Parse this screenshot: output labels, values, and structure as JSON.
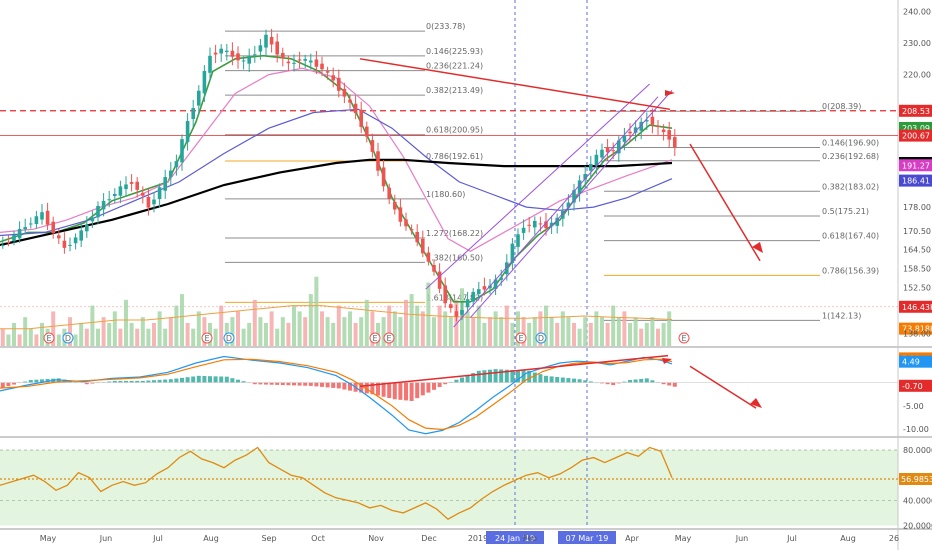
{
  "colors": {
    "bull": "#26a69a",
    "bear": "#ef5350",
    "ema_fast": "#3f9b3f",
    "ma_pink": "#e87cc5",
    "ma_blue": "#5b5bd6",
    "ma_black": "#000000",
    "channel": "#9b4fe0",
    "annot": "#e32b2b",
    "macd": "#2196f3",
    "signal": "#f57c00",
    "rsi": "#e08a12",
    "rsi_band": "#e3f5df",
    "vol_ma": "#f0a040",
    "fib_orange": "#f5a623"
  },
  "chart_data": [
    {
      "type": "line",
      "name": "price",
      "ylim": [
        134,
        243
      ],
      "y_ticks": [
        "240.00",
        "230.00",
        "220.00",
        "208.53",
        "203.09",
        "200.67",
        "191.98",
        "191.27",
        "186.41",
        "178.00",
        "170.50",
        "164.50",
        "158.50",
        "152.50",
        "146.43K",
        "73.818K",
        "138.00"
      ],
      "x_ticks": [
        "May",
        "Jun",
        "Jul",
        "Aug",
        "Sep",
        "Oct",
        "Nov",
        "Dec",
        "2019",
        "24 Jan '19",
        "Feb",
        "07 Mar '19",
        "Apr",
        "May",
        "Jun",
        "Jul",
        "Aug",
        "26"
      ],
      "price_path": [
        [
          0,
          166
        ],
        [
          4,
          172
        ],
        [
          7,
          176
        ],
        [
          9,
          170
        ],
        [
          11,
          165
        ],
        [
          14,
          170
        ],
        [
          17,
          178
        ],
        [
          19,
          181
        ],
        [
          21,
          184
        ],
        [
          23,
          186
        ],
        [
          25,
          181
        ],
        [
          26,
          178
        ],
        [
          28,
          184
        ],
        [
          31,
          193
        ],
        [
          33,
          205
        ],
        [
          35,
          215
        ],
        [
          37,
          226
        ],
        [
          39,
          228
        ],
        [
          41,
          226
        ],
        [
          43,
          224
        ],
        [
          45,
          227
        ],
        [
          47,
          232
        ],
        [
          49,
          227
        ],
        [
          51,
          223
        ],
        [
          53,
          225
        ],
        [
          55,
          224
        ],
        [
          57,
          222
        ],
        [
          59,
          218
        ],
        [
          61,
          213
        ],
        [
          63,
          208
        ],
        [
          65,
          200
        ],
        [
          67,
          190
        ],
        [
          69,
          180
        ],
        [
          71,
          174
        ],
        [
          73,
          170
        ],
        [
          75,
          164
        ],
        [
          77,
          157
        ],
        [
          79,
          148
        ],
        [
          81,
          143
        ],
        [
          83,
          149
        ],
        [
          85,
          152
        ],
        [
          87,
          153
        ],
        [
          89,
          156
        ],
        [
          91,
          166
        ],
        [
          93,
          172
        ],
        [
          95,
          173
        ],
        [
          97,
          172
        ],
        [
          99,
          174
        ],
        [
          101,
          180
        ],
        [
          103,
          186
        ],
        [
          105,
          192
        ],
        [
          107,
          196
        ],
        [
          109,
          196
        ],
        [
          111,
          201
        ],
        [
          113,
          203
        ],
        [
          115,
          206
        ],
        [
          117,
          203
        ],
        [
          119,
          200
        ],
        [
          120,
          197
        ]
      ],
      "series": [
        {
          "name": "",
          "color_key": "ema_fast",
          "points": [
            [
              0,
              167
            ],
            [
              5,
              170
            ],
            [
              10,
              170
            ],
            [
              15,
              173
            ],
            [
              20,
              180
            ],
            [
              25,
              183
            ],
            [
              30,
              186
            ],
            [
              35,
              205
            ],
            [
              38,
              221
            ],
            [
              42,
              225
            ],
            [
              47,
              226
            ],
            [
              52,
              225
            ],
            [
              57,
              221
            ],
            [
              62,
              214
            ],
            [
              66,
              199
            ],
            [
              70,
              181
            ],
            [
              74,
              169
            ],
            [
              78,
              157
            ],
            [
              81,
              148
            ],
            [
              84,
              148
            ],
            [
              88,
              152
            ],
            [
              92,
              162
            ],
            [
              96,
              169
            ],
            [
              100,
              174
            ],
            [
              104,
              184
            ],
            [
              108,
              193
            ],
            [
              112,
              198
            ],
            [
              116,
              204
            ],
            [
              120,
              203
            ]
          ]
        },
        {
          "name": "",
          "color_key": "ma_pink",
          "points": [
            [
              0,
              170
            ],
            [
              6,
              171
            ],
            [
              12,
              174
            ],
            [
              18,
              178
            ],
            [
              24,
              181
            ],
            [
              30,
              186
            ],
            [
              36,
              200
            ],
            [
              42,
              214
            ],
            [
              48,
              220
            ],
            [
              54,
              222
            ],
            [
              60,
              219
            ],
            [
              66,
              210
            ],
            [
              72,
              194
            ],
            [
              76,
              181
            ],
            [
              80,
              168
            ],
            [
              84,
              164
            ],
            [
              88,
              168
            ],
            [
              94,
              174
            ],
            [
              100,
              180
            ],
            [
              106,
              184
            ],
            [
              112,
              188
            ],
            [
              120,
              193
            ]
          ]
        },
        {
          "name": "",
          "color_key": "ma_blue",
          "points": [
            [
              0,
              169
            ],
            [
              8,
              170
            ],
            [
              16,
              174
            ],
            [
              24,
              180
            ],
            [
              32,
              186
            ],
            [
              40,
              195
            ],
            [
              48,
              203
            ],
            [
              56,
              208
            ],
            [
              64,
              209
            ],
            [
              70,
              203
            ],
            [
              76,
              194
            ],
            [
              82,
              186
            ],
            [
              88,
              182
            ],
            [
              94,
              178
            ],
            [
              100,
              177
            ],
            [
              106,
              178
            ],
            [
              112,
              181
            ],
            [
              120,
              187
            ]
          ]
        },
        {
          "name": "",
          "color_key": "ma_black",
          "points": [
            [
              0,
              166
            ],
            [
              10,
              170
            ],
            [
              20,
              174
            ],
            [
              30,
              179
            ],
            [
              40,
              185
            ],
            [
              50,
              189
            ],
            [
              60,
              192
            ],
            [
              66,
              193
            ],
            [
              72,
              193
            ],
            [
              80,
              192
            ],
            [
              90,
              191
            ],
            [
              100,
              191
            ],
            [
              110,
              191
            ],
            [
              120,
              192
            ]
          ]
        }
      ],
      "fib_left": {
        "values": [
          "0(233.78)",
          "0.146(225.93)",
          "0.236(221.24)",
          "0.382(213.49)",
          "0.618(200.95)",
          "0.786(192.61)",
          "1(180.60)",
          "1.272(168.22)",
          "1.382(160.50)",
          "1.618(147.82)"
        ]
      },
      "fib_right": {
        "values": [
          "0(208.39)",
          "0.146(196.90)",
          "0.236(192.68)",
          "0.382(183.02)",
          "0.5(175.21)",
          "0.618(167.40)",
          "0.786(156.39)",
          "1(142.13)"
        ]
      }
    },
    {
      "type": "bar",
      "name": "volume",
      "values": [
        3,
        2,
        4,
        2,
        5,
        3,
        2,
        4,
        3,
        6,
        2,
        3,
        5,
        2,
        4,
        3,
        7,
        3,
        5,
        4,
        6,
        3,
        8,
        4,
        3,
        5,
        3,
        4,
        6,
        3,
        5,
        7,
        9,
        4,
        3,
        6,
        5,
        4,
        3,
        7,
        4,
        5,
        6,
        3,
        4,
        8,
        5,
        4,
        6,
        3,
        5,
        4,
        7,
        6,
        5,
        9,
        12,
        6,
        5,
        4,
        7,
        5,
        6,
        4,
        5,
        8,
        6,
        4,
        5,
        7,
        6,
        5,
        8,
        9,
        7,
        6,
        11,
        5,
        7,
        6,
        5,
        8,
        10,
        6,
        5,
        7,
        4,
        5,
        6,
        5,
        7,
        4,
        6,
        5,
        4,
        5,
        6,
        7,
        5,
        4,
        6,
        5,
        4,
        3,
        5,
        4,
        6,
        5,
        4,
        7,
        5,
        6,
        4,
        5,
        3,
        4,
        5,
        3,
        4,
        6
      ],
      "ma": [
        3,
        3,
        3.5,
        4,
        4.5,
        4.5,
        5,
        5.5,
        6,
        6.5,
        7,
        7,
        6.5,
        6,
        5.5,
        5.2,
        5,
        4.8,
        4.8,
        5,
        5.2,
        5,
        4.8,
        4.6
      ]
    },
    {
      "type": "line",
      "name": "MACD",
      "ylim": [
        -11.5,
        7
      ],
      "y_ticks": [
        "5.19",
        "4.49",
        "-0.70",
        "-5.00",
        "-10.00"
      ],
      "macd": [
        [
          0,
          -1.8
        ],
        [
          5,
          -0.5
        ],
        [
          10,
          0.6
        ],
        [
          15,
          0.2
        ],
        [
          20,
          0.9
        ],
        [
          25,
          1.2
        ],
        [
          30,
          2.2
        ],
        [
          35,
          4.2
        ],
        [
          40,
          5.6
        ],
        [
          45,
          4.8
        ],
        [
          50,
          4.2
        ],
        [
          55,
          3.2
        ],
        [
          60,
          1.5
        ],
        [
          63,
          -0.6
        ],
        [
          66,
          -3.2
        ],
        [
          70,
          -7.0
        ],
        [
          73,
          -10.2
        ],
        [
          76,
          -11.0
        ],
        [
          79,
          -10.3
        ],
        [
          82,
          -8.6
        ],
        [
          85,
          -6.0
        ],
        [
          88,
          -3.2
        ],
        [
          91,
          -0.7
        ],
        [
          94,
          2.0
        ],
        [
          97,
          3.2
        ],
        [
          100,
          4.2
        ],
        [
          103,
          4.6
        ],
        [
          106,
          4.4
        ],
        [
          109,
          3.8
        ],
        [
          112,
          4.6
        ],
        [
          115,
          5.4
        ],
        [
          118,
          4.8
        ],
        [
          120,
          4.0
        ]
      ],
      "signal": [
        [
          0,
          -1.2
        ],
        [
          5,
          -0.8
        ],
        [
          10,
          0.1
        ],
        [
          15,
          0.4
        ],
        [
          20,
          0.7
        ],
        [
          25,
          1.0
        ],
        [
          30,
          1.8
        ],
        [
          35,
          3.4
        ],
        [
          40,
          4.9
        ],
        [
          45,
          5.0
        ],
        [
          50,
          4.5
        ],
        [
          55,
          3.6
        ],
        [
          60,
          2.2
        ],
        [
          63,
          0.5
        ],
        [
          66,
          -1.8
        ],
        [
          70,
          -5.0
        ],
        [
          73,
          -8.0
        ],
        [
          76,
          -9.8
        ],
        [
          79,
          -10.1
        ],
        [
          82,
          -9.2
        ],
        [
          85,
          -7.4
        ],
        [
          88,
          -4.8
        ],
        [
          91,
          -2.2
        ],
        [
          94,
          0.6
        ],
        [
          97,
          2.4
        ],
        [
          100,
          3.6
        ],
        [
          103,
          4.2
        ],
        [
          106,
          4.4
        ],
        [
          109,
          4.1
        ],
        [
          112,
          4.3
        ],
        [
          115,
          4.9
        ],
        [
          118,
          5.0
        ],
        [
          120,
          4.5
        ]
      ]
    },
    {
      "type": "line",
      "name": "RSI",
      "ylim": [
        18,
        88
      ],
      "y_ticks": [
        "80.0000",
        "56.9853",
        "40.0000",
        "20.0000"
      ],
      "values": [
        [
          0,
          52
        ],
        [
          3,
          56
        ],
        [
          6,
          60
        ],
        [
          8,
          55
        ],
        [
          10,
          48
        ],
        [
          12,
          52
        ],
        [
          14,
          62
        ],
        [
          16,
          58
        ],
        [
          18,
          47
        ],
        [
          20,
          52
        ],
        [
          22,
          55
        ],
        [
          24,
          52
        ],
        [
          26,
          54
        ],
        [
          28,
          61
        ],
        [
          30,
          66
        ],
        [
          32,
          74
        ],
        [
          34,
          79
        ],
        [
          36,
          73
        ],
        [
          38,
          70
        ],
        [
          40,
          66
        ],
        [
          42,
          72
        ],
        [
          44,
          76
        ],
        [
          46,
          82
        ],
        [
          48,
          70
        ],
        [
          50,
          65
        ],
        [
          52,
          60
        ],
        [
          54,
          58
        ],
        [
          56,
          52
        ],
        [
          58,
          46
        ],
        [
          60,
          42
        ],
        [
          62,
          40
        ],
        [
          64,
          38
        ],
        [
          66,
          34
        ],
        [
          68,
          36
        ],
        [
          70,
          32
        ],
        [
          72,
          30
        ],
        [
          74,
          34
        ],
        [
          76,
          38
        ],
        [
          78,
          33
        ],
        [
          80,
          25
        ],
        [
          82,
          30
        ],
        [
          84,
          34
        ],
        [
          86,
          41
        ],
        [
          88,
          47
        ],
        [
          90,
          52
        ],
        [
          92,
          56
        ],
        [
          94,
          60
        ],
        [
          96,
          62
        ],
        [
          98,
          58
        ],
        [
          100,
          61
        ],
        [
          102,
          66
        ],
        [
          104,
          72
        ],
        [
          106,
          74
        ],
        [
          108,
          70
        ],
        [
          110,
          74
        ],
        [
          112,
          78
        ],
        [
          114,
          75
        ],
        [
          116,
          82
        ],
        [
          118,
          79
        ],
        [
          120,
          58
        ]
      ]
    }
  ]
}
